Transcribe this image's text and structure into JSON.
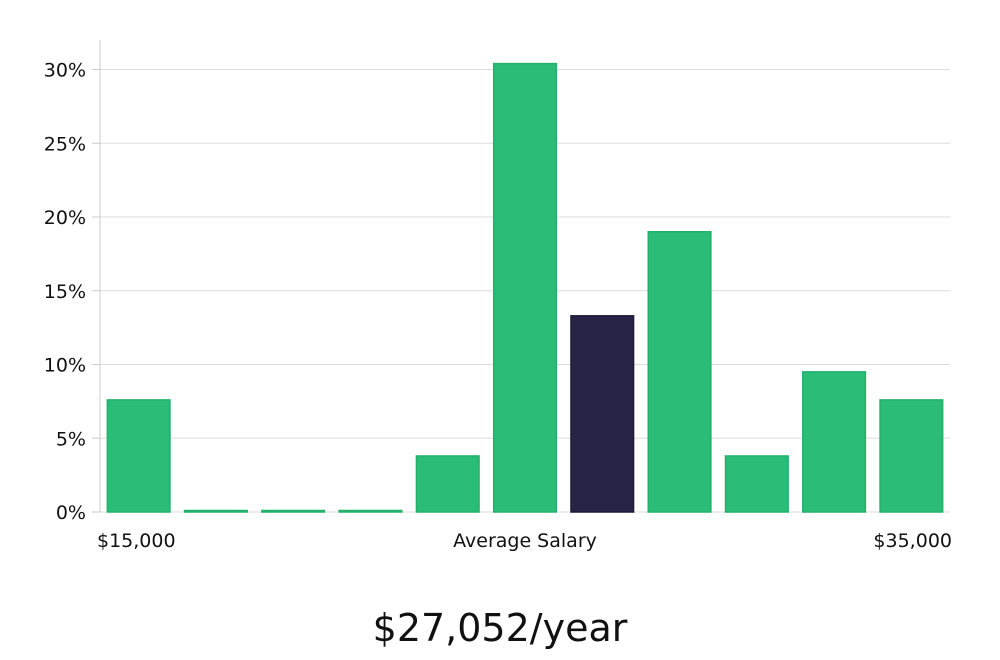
{
  "chart_data": {
    "type": "bar",
    "categories": [
      "$15,000",
      "",
      "",
      "",
      "",
      "",
      "",
      "",
      "",
      "",
      "$35,000"
    ],
    "values": [
      7.6,
      0,
      0,
      0,
      3.8,
      30.4,
      13.3,
      19.0,
      3.8,
      9.5,
      7.6
    ],
    "highlight_index": 6,
    "ylim": [
      0,
      32
    ],
    "yticks": [
      "0%",
      "5%",
      "10%",
      "15%",
      "20%",
      "25%",
      "30%"
    ],
    "ytick_values": [
      0,
      5,
      10,
      15,
      20,
      25,
      30
    ],
    "xlabel_left": "$15,000",
    "xlabel_center": "Average Salary",
    "xlabel_right": "$35,000",
    "grid": true,
    "colors": {
      "bar": "#2bbd77",
      "bar_edge": "#22b06c",
      "highlight": "#282446",
      "grid": "#dddddd",
      "axis": "#cccccc"
    }
  },
  "salary_text": "$27,052/year"
}
